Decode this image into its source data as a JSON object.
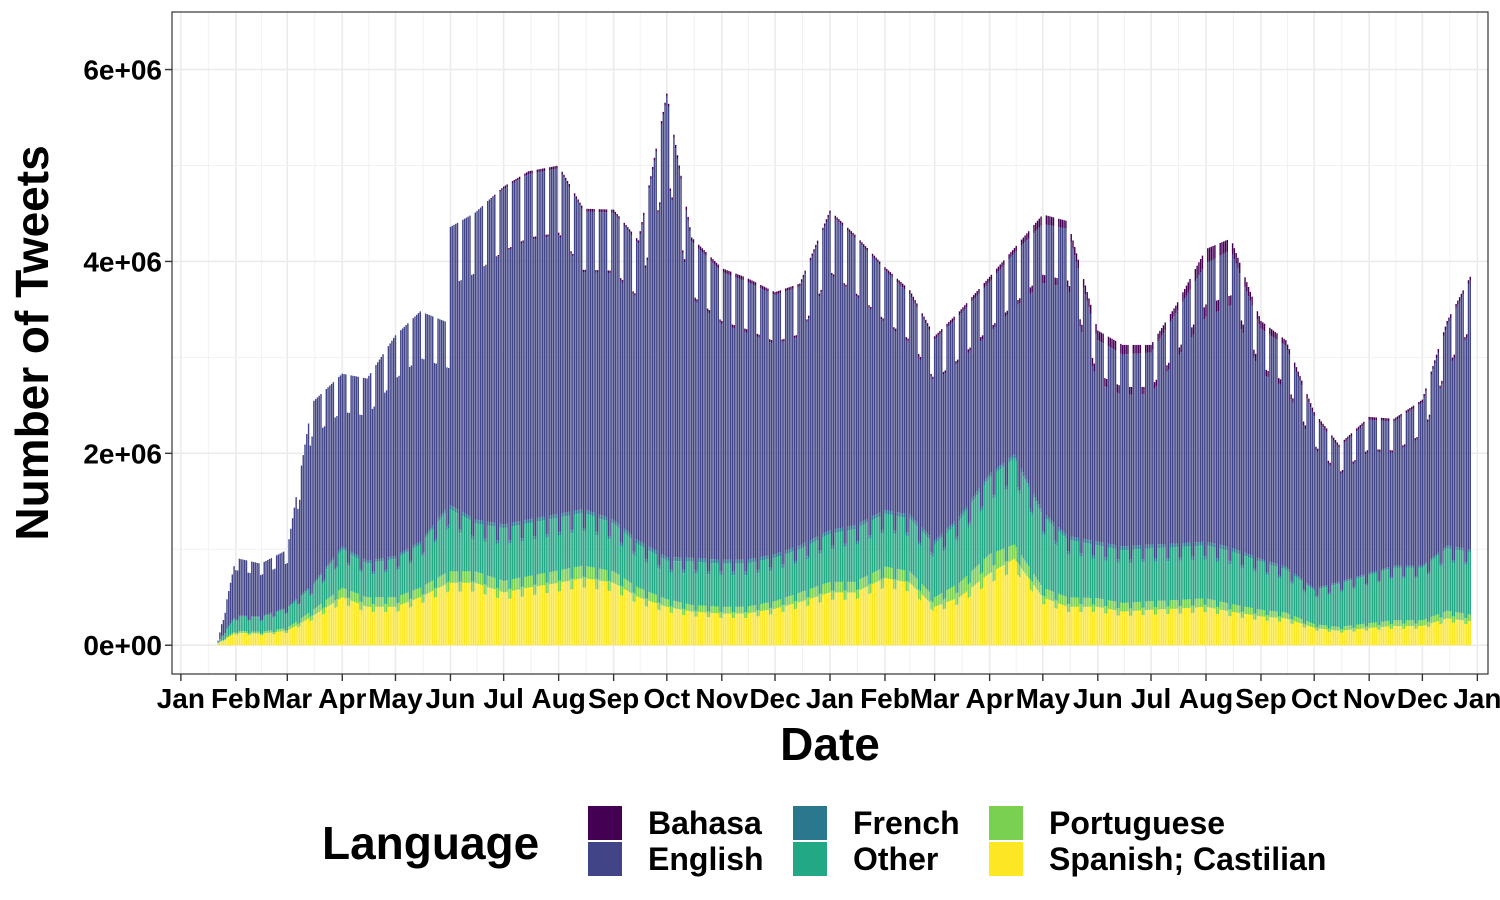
{
  "chart_data": {
    "type": "bar",
    "stacked": true,
    "xlabel": "Date",
    "ylabel": "Number of Tweets",
    "x_tick_labels": [
      "Jan",
      "Feb",
      "Mar",
      "Apr",
      "May",
      "Jun",
      "Jul",
      "Aug",
      "Sep",
      "Oct",
      "Nov",
      "Dec",
      "Jan",
      "Feb",
      "Mar",
      "Apr",
      "May",
      "Jun",
      "Jul",
      "Aug",
      "Sep",
      "Oct",
      "Nov",
      "Dec",
      "Jan"
    ],
    "y_ticks": [
      0,
      2000000,
      4000000,
      6000000
    ],
    "y_tick_labels": [
      "0e+00",
      "2e+06",
      "4e+06",
      "6e+06"
    ],
    "ylim": [
      -300000,
      6600000
    ],
    "grid": true,
    "legend": {
      "title": "Language",
      "position": "bottom",
      "entries": [
        "Bahasa",
        "English",
        "French",
        "Other",
        "Portuguese",
        "Spanish; Castilian"
      ]
    },
    "colors": {
      "Bahasa": "#440154",
      "English": "#414487",
      "French": "#2a788e",
      "Other": "#22a884",
      "Portuguese": "#7ad151",
      "Spanish; Castilian": "#fde725"
    },
    "x": [
      "2020-01-22",
      "2020-02-01",
      "2020-02-15",
      "2020-03-01",
      "2020-03-15",
      "2020-04-01",
      "2020-04-15",
      "2020-05-01",
      "2020-05-15",
      "2020-05-31",
      "2020-06-01",
      "2020-06-15",
      "2020-07-01",
      "2020-07-15",
      "2020-08-01",
      "2020-08-15",
      "2020-09-01",
      "2020-09-15",
      "2020-10-01",
      "2020-10-15",
      "2020-11-01",
      "2020-11-15",
      "2020-12-01",
      "2020-12-15",
      "2021-01-01",
      "2021-01-15",
      "2021-02-01",
      "2021-02-15",
      "2021-03-01",
      "2021-03-15",
      "2021-04-01",
      "2021-04-15",
      "2021-05-01",
      "2021-05-15",
      "2021-06-01",
      "2021-06-15",
      "2021-07-01",
      "2021-07-15",
      "2021-08-01",
      "2021-08-15",
      "2021-09-01",
      "2021-09-15",
      "2021-10-01",
      "2021-10-15",
      "2021-11-01",
      "2021-11-15",
      "2021-12-01",
      "2021-12-15",
      "2021-12-28"
    ],
    "series": [
      {
        "name": "Spanish; Castilian",
        "values": [
          20000,
          130000,
          120000,
          150000,
          300000,
          500000,
          400000,
          400000,
          500000,
          650000,
          650000,
          650000,
          550000,
          600000,
          650000,
          700000,
          650000,
          500000,
          400000,
          350000,
          330000,
          330000,
          380000,
          450000,
          550000,
          550000,
          700000,
          650000,
          400000,
          500000,
          750000,
          900000,
          500000,
          400000,
          400000,
          350000,
          370000,
          380000,
          400000,
          350000,
          300000,
          280000,
          180000,
          150000,
          180000,
          200000,
          200000,
          280000,
          250000
        ]
      },
      {
        "name": "Portuguese",
        "values": [
          5000,
          20000,
          20000,
          30000,
          60000,
          100000,
          100000,
          100000,
          100000,
          120000,
          120000,
          120000,
          120000,
          120000,
          130000,
          130000,
          120000,
          100000,
          80000,
          70000,
          70000,
          70000,
          80000,
          100000,
          110000,
          110000,
          120000,
          120000,
          100000,
          150000,
          200000,
          150000,
          100000,
          100000,
          90000,
          90000,
          90000,
          90000,
          90000,
          80000,
          70000,
          60000,
          40000,
          40000,
          50000,
          60000,
          60000,
          80000,
          70000
        ]
      },
      {
        "name": "Other",
        "values": [
          10000,
          150000,
          150000,
          200000,
          250000,
          400000,
          350000,
          400000,
          450000,
          650000,
          650000,
          500000,
          550000,
          550000,
          550000,
          550000,
          500000,
          450000,
          400000,
          450000,
          450000,
          450000,
          450000,
          450000,
          500000,
          550000,
          550000,
          550000,
          550000,
          650000,
          800000,
          900000,
          750000,
          600000,
          550000,
          550000,
          550000,
          550000,
          550000,
          550000,
          500000,
          450000,
          350000,
          450000,
          500000,
          550000,
          550000,
          650000,
          650000
        ]
      },
      {
        "name": "French",
        "values": [
          2000,
          10000,
          10000,
          15000,
          20000,
          30000,
          30000,
          30000,
          30000,
          40000,
          40000,
          40000,
          40000,
          40000,
          40000,
          40000,
          40000,
          40000,
          40000,
          40000,
          40000,
          40000,
          40000,
          40000,
          40000,
          40000,
          40000,
          40000,
          40000,
          40000,
          40000,
          40000,
          40000,
          40000,
          40000,
          40000,
          40000,
          40000,
          40000,
          40000,
          30000,
          30000,
          20000,
          20000,
          20000,
          20000,
          20000,
          30000,
          30000
        ]
      },
      {
        "name": "English",
        "values": [
          10000,
          600000,
          550000,
          600000,
          1900000,
          1800000,
          1900000,
          2300000,
          2400000,
          1900000,
          2900000,
          3200000,
          3500000,
          3600000,
          3600000,
          3100000,
          3200000,
          3100000,
          4800000,
          3300000,
          3000000,
          2900000,
          2700000,
          2700000,
          3300000,
          3000000,
          2500000,
          2300000,
          2100000,
          2100000,
          2000000,
          2100000,
          3000000,
          3200000,
          2100000,
          2000000,
          2000000,
          2400000,
          2900000,
          3100000,
          2400000,
          2300000,
          1800000,
          1400000,
          1600000,
          1500000,
          1700000,
          2300000,
          2800000
        ]
      },
      {
        "name": "Bahasa",
        "values": [
          0,
          0,
          0,
          0,
          0,
          0,
          0,
          0,
          0,
          0,
          0,
          0,
          20000,
          30000,
          30000,
          30000,
          30000,
          30000,
          30000,
          40000,
          40000,
          40000,
          30000,
          30000,
          30000,
          30000,
          30000,
          40000,
          30000,
          40000,
          50000,
          50000,
          100000,
          80000,
          100000,
          100000,
          80000,
          80000,
          150000,
          120000,
          80000,
          60000,
          40000,
          30000,
          30000,
          30000,
          30000,
          40000,
          40000
        ]
      }
    ]
  }
}
